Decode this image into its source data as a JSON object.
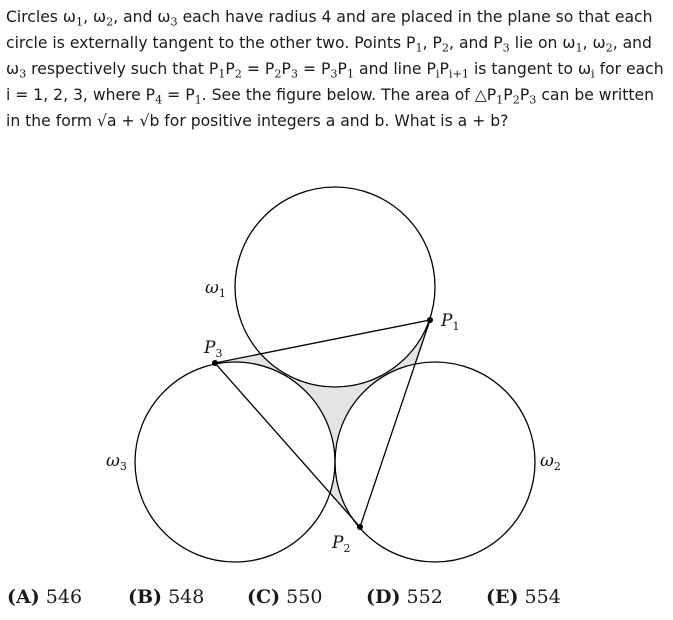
{
  "problem": {
    "p1": "Circles ω",
    "p2": "1",
    "p3": ", ω",
    "p4": "2",
    "p5": ", and ω",
    "p6": "3",
    "p7": " each have radius 4 and are placed in the plane so that each circle is externally tangent to the other two. Points P",
    "p8": "1",
    "p9": ", P",
    "p10": "2",
    "p11": ", and P",
    "p12": "3",
    "p13": " lie on ω",
    "p14": "1",
    "p15": ", ω",
    "p16": "2",
    "p17": ", and ω",
    "p18": "3",
    "p19": " respectively such that P",
    "p20": "1",
    "p21": "P",
    "p22": "2",
    "p23": " = P",
    "p24": "2",
    "p25": "P",
    "p26": "3",
    "p27": " = P",
    "p28": "3",
    "p29": "P",
    "p30": "1",
    "p31": " and line P",
    "p32": "i",
    "p33": "P",
    "p34": "i+1",
    "p35": " is tangent to ω",
    "p36": "i",
    "p37": " for each i = 1, 2, 3, where P",
    "p38": "4",
    "p39": " = P",
    "p40": "1",
    "p41": ". See the figure below. The area of △P",
    "p42": "1",
    "p43": "P",
    "p44": "2",
    "p45": "P",
    "p46": "3",
    "p47": " can be written in the form √a + √b for positive integers a and b. What is a + b?"
  },
  "figure": {
    "label_omega1": "ω1",
    "label_omega2": "ω2",
    "label_omega3": "ω3",
    "label_P1": "P1",
    "label_P2": "P2",
    "label_P3": "P3",
    "shade_color": "#e4e4e4",
    "line_color": "#000000"
  },
  "choices": [
    {
      "label": "(A)",
      "value": "546"
    },
    {
      "label": "(B)",
      "value": "548"
    },
    {
      "label": "(C)",
      "value": "550"
    },
    {
      "label": "(D)",
      "value": "552"
    },
    {
      "label": "(E)",
      "value": "554"
    }
  ]
}
